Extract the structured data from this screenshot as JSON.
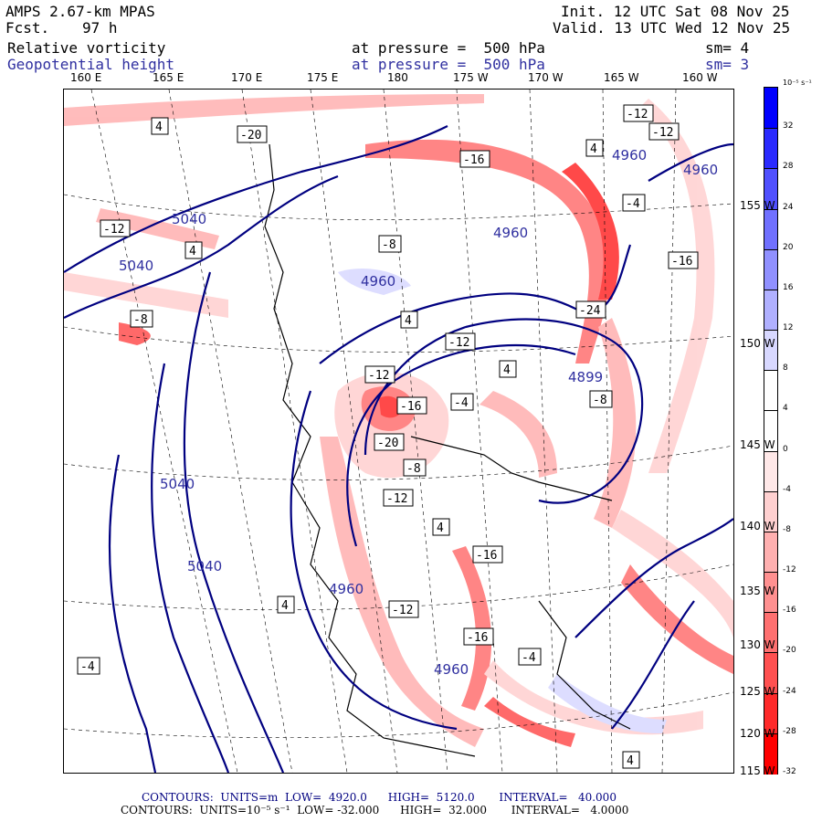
{
  "header": {
    "model": "AMPS 2.67-km MPAS",
    "forecast_label": "Fcst.",
    "forecast_hours": "97 h",
    "init": "Init. 12 UTC Sat 08 Nov 25",
    "valid": "Valid. 13 UTC Wed 12 Nov 25",
    "field1_name": "Relative vorticity",
    "field1_level": "at pressure =  500 hPa",
    "field1_smooth": "sm= 4",
    "field2_name": "Geopotential height",
    "field2_level": "at pressure =  500 hPa",
    "field2_smooth": "sm= 3"
  },
  "longitude_labels": [
    "160 E",
    "165 E",
    "170 E",
    "175 E",
    "180",
    "175 W",
    "170 W",
    "165 W",
    "160 W"
  ],
  "latitude_labels": [
    "155 W",
    "150 W",
    "145 W",
    "140 W",
    "135 W",
    "130 W",
    "125 W",
    "120 W",
    "115 W"
  ],
  "colorbar": {
    "unit": "10⁻⁵ s⁻¹",
    "ticks": [
      "32",
      "28",
      "24",
      "20",
      "16",
      "12",
      "8",
      "4",
      "0",
      "-4",
      "-8",
      "-12",
      "-16",
      "-20",
      "-24",
      "-28",
      "-32"
    ],
    "colors": [
      "#0000ff",
      "#2a2aff",
      "#5050ff",
      "#7070ff",
      "#9090ff",
      "#b0b0ff",
      "#d8d8ff",
      "#ffffff",
      "#ffffff",
      "#ffe8e8",
      "#ffd0d0",
      "#ffb0b0",
      "#ff9090",
      "#ff7070",
      "#ff5050",
      "#ff2a2a",
      "#ff0000"
    ]
  },
  "height_contour_labels": [
    "5040",
    "5040",
    "5040",
    "5040",
    "4960",
    "4960",
    "4960",
    "4960",
    "4960",
    "4960",
    "4899"
  ],
  "vorticity_box_labels": [
    "4",
    "-20",
    "-12",
    "4",
    "-8",
    "-16",
    "-12",
    "-4",
    "4",
    "4",
    "-8",
    "-12",
    "-20",
    "-12",
    "-16",
    "-8",
    "-12",
    "4",
    "-16",
    "-24",
    "-4",
    "-8",
    "-16",
    "-12",
    "4",
    "-4",
    "4",
    "-12",
    "4",
    "-16",
    "-4"
  ],
  "footer": {
    "line1": "CONTOURS:  UNITS=m  LOW=  4920.0      HIGH=  5120.0       INTERVAL=   40.000",
    "line2": "CONTOURS:  UNITS=10⁻⁵ s⁻¹  LOW= -32.000      HIGH=  32.000       INTERVAL=   4.0000"
  }
}
